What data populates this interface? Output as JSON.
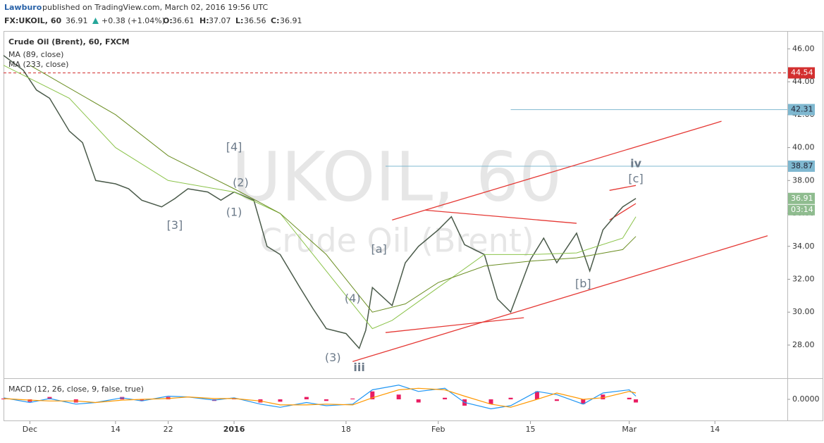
{
  "header": {
    "publisher": "Lawburo",
    "published": "published on TradingView.com, March 02, 2016 19:56 UTC",
    "symbol": "FX:UKOIL, 60",
    "last": "36.91",
    "change": "+0.38 (+1.04%)",
    "o_label": "O:",
    "open": "36.61",
    "h_label": "H:",
    "high": "37.07",
    "l_label": "L:",
    "low": "36.56",
    "c_label": "C:",
    "close": "36.91"
  },
  "chart_data": [
    {
      "type": "candles-line",
      "title": "Crude Oil (Brent), 60, FXCM",
      "watermark": "UKOIL, 60",
      "watermark_sub": "Crude Oil (Brent)",
      "countdown": "03:14",
      "xlim": [
        "2015-11-27",
        "2016-03-25"
      ],
      "xticks": [
        {
          "value": "2015-12-01",
          "label": "Dec"
        },
        {
          "value": "2015-12-14",
          "label": "14"
        },
        {
          "value": "2015-12-22",
          "label": "22"
        },
        {
          "value": "2016-01-01",
          "label": "2016"
        },
        {
          "value": "2016-01-18",
          "label": "18"
        },
        {
          "value": "2016-02-01",
          "label": "Feb"
        },
        {
          "value": "2016-02-15",
          "label": "15"
        },
        {
          "value": "2016-03-01",
          "label": "Mar"
        },
        {
          "value": "2016-03-14",
          "label": "14"
        }
      ],
      "ylim": [
        26.5,
        47
      ],
      "yticks": [
        {
          "value": 28,
          "label": "28.00"
        },
        {
          "value": 30,
          "label": "30.00"
        },
        {
          "value": 32,
          "label": "32.00"
        },
        {
          "value": 34,
          "label": "34.00"
        },
        {
          "value": 36,
          "label": "36.00"
        },
        {
          "value": 38,
          "label": "38.00"
        },
        {
          "value": 40,
          "label": "40.00"
        },
        {
          "value": 42,
          "label": "42.00"
        },
        {
          "value": 44,
          "label": "44.00"
        },
        {
          "value": 46,
          "label": "46.00"
        }
      ],
      "series": [
        {
          "name": "UKOIL",
          "color": "#4a5a4a",
          "x": [
            "2015-11-27",
            "2015-11-30",
            "2015-12-02",
            "2015-12-04",
            "2015-12-07",
            "2015-12-09",
            "2015-12-11",
            "2015-12-14",
            "2015-12-16",
            "2015-12-18",
            "2015-12-21",
            "2015-12-23",
            "2015-12-25",
            "2015-12-28",
            "2015-12-30",
            "2016-01-01",
            "2016-01-04",
            "2016-01-06",
            "2016-01-08",
            "2016-01-11",
            "2016-01-13",
            "2016-01-15",
            "2016-01-18",
            "2016-01-20",
            "2016-01-21",
            "2016-01-22",
            "2016-01-25",
            "2016-01-27",
            "2016-01-29",
            "2016-02-01",
            "2016-02-03",
            "2016-02-05",
            "2016-02-08",
            "2016-02-10",
            "2016-02-12",
            "2016-02-15",
            "2016-02-17",
            "2016-02-19",
            "2016-02-22",
            "2016-02-24",
            "2016-02-26",
            "2016-02-29",
            "2016-03-02"
          ],
          "values": [
            45.6,
            44.7,
            43.5,
            43.0,
            41.0,
            40.3,
            38.0,
            37.8,
            37.5,
            36.8,
            36.4,
            36.9,
            37.5,
            37.3,
            36.8,
            37.3,
            36.8,
            34.0,
            33.5,
            31.5,
            30.2,
            29.0,
            28.7,
            27.8,
            28.9,
            31.5,
            30.4,
            33.0,
            34.0,
            35.0,
            35.8,
            34.1,
            33.5,
            30.8,
            30.0,
            33.2,
            34.5,
            33.0,
            34.8,
            32.5,
            35.0,
            36.4,
            36.91
          ]
        },
        {
          "name": "MA (89, close)",
          "color": "#8bc34a",
          "x": [
            "2015-11-27",
            "2015-12-07",
            "2015-12-14",
            "2015-12-22",
            "2016-01-01",
            "2016-01-08",
            "2016-01-15",
            "2016-01-22",
            "2016-01-25",
            "2016-02-01",
            "2016-02-08",
            "2016-02-15",
            "2016-02-22",
            "2016-02-29",
            "2016-03-02"
          ],
          "values": [
            45.0,
            43.0,
            40.0,
            38.0,
            37.3,
            36.0,
            32.5,
            29.0,
            29.5,
            31.5,
            33.5,
            33.5,
            33.6,
            34.5,
            35.8
          ]
        },
        {
          "name": "MA (233, close)",
          "color": "#6b8e23",
          "x": [
            "2015-12-01",
            "2015-12-14",
            "2015-12-22",
            "2016-01-01",
            "2016-01-08",
            "2016-01-15",
            "2016-01-22",
            "2016-01-27",
            "2016-02-01",
            "2016-02-08",
            "2016-02-15",
            "2016-02-22",
            "2016-02-29",
            "2016-03-02"
          ],
          "values": [
            45.0,
            42.0,
            39.5,
            37.5,
            36.0,
            33.5,
            30.0,
            30.5,
            31.8,
            32.8,
            33.1,
            33.3,
            33.8,
            34.6
          ]
        }
      ],
      "levels": [
        {
          "value": 44.54,
          "from": "2015-11-27",
          "color": "#d32f2f",
          "dashed": true
        },
        {
          "value": 42.31,
          "from": "2016-02-12",
          "color": "#7fb8d0",
          "dashed": false
        },
        {
          "value": 38.87,
          "from": "2016-01-24",
          "color": "#7fb8d0",
          "dashed": false
        }
      ],
      "trendlines": [
        {
          "x": [
            "2016-01-19",
            "2016-03-22"
          ],
          "y": [
            27.0,
            34.64
          ]
        },
        {
          "x": [
            "2016-01-25",
            "2016-03-15"
          ],
          "y": [
            35.6,
            41.6
          ]
        },
        {
          "x": [
            "2016-01-30",
            "2016-02-22"
          ],
          "y": [
            36.2,
            35.4
          ]
        },
        {
          "x": [
            "2016-01-24",
            "2016-02-14"
          ],
          "y": [
            28.76,
            29.66
          ]
        },
        {
          "x": [
            "2016-02-27",
            "2016-03-02"
          ],
          "y": [
            37.4,
            37.7
          ]
        },
        {
          "x": [
            "2016-02-27",
            "2016-03-02"
          ],
          "y": [
            35.6,
            36.6
          ]
        }
      ],
      "trend_color": "#e53935",
      "annotations": [
        {
          "text": "[4]",
          "x": "2016-01-01",
          "y": 40.0
        },
        {
          "text": "(2)",
          "x": "2016-01-02",
          "y": 37.85
        },
        {
          "text": "(1)",
          "x": "2016-01-01",
          "y": 36.05
        },
        {
          "text": "[3]",
          "x": "2015-12-23",
          "y": 35.25
        },
        {
          "text": "(4)",
          "x": "2016-01-19",
          "y": 30.8
        },
        {
          "text": "(3)",
          "x": "2016-01-16",
          "y": 27.2
        },
        {
          "text": "iii",
          "x": "2016-01-20",
          "y": 26.6
        },
        {
          "text": "[a]",
          "x": "2016-01-23",
          "y": 33.8
        },
        {
          "text": "[b]",
          "x": "2016-02-23",
          "y": 31.7
        },
        {
          "text": "[c]",
          "x": "2016-03-02",
          "y": 38.07
        },
        {
          "text": "iv",
          "x": "2016-03-02",
          "y": 39.0
        }
      ]
    },
    {
      "type": "macd",
      "title": "MACD (12, 26, close, 9, false, true)",
      "ylim": [
        -1.2,
        1.2
      ],
      "yticks": [
        {
          "value": 0,
          "label": "0.0000"
        }
      ],
      "x": [
        "2015-11-27",
        "2015-12-01",
        "2015-12-04",
        "2015-12-08",
        "2015-12-11",
        "2015-12-15",
        "2015-12-18",
        "2015-12-22",
        "2015-12-25",
        "2015-12-29",
        "2016-01-01",
        "2016-01-05",
        "2016-01-08",
        "2016-01-12",
        "2016-01-15",
        "2016-01-19",
        "2016-01-22",
        "2016-01-26",
        "2016-01-29",
        "2016-02-02",
        "2016-02-05",
        "2016-02-09",
        "2016-02-12",
        "2016-02-16",
        "2016-02-19",
        "2016-02-23",
        "2016-02-26",
        "2016-03-01",
        "2016-03-02"
      ],
      "series": [
        {
          "name": "MACD",
          "color": "#2196f3",
          "values": [
            0.1,
            -0.2,
            0.05,
            -0.3,
            -0.2,
            0.1,
            -0.1,
            0.2,
            0.15,
            -0.05,
            0.1,
            -0.3,
            -0.5,
            -0.2,
            -0.4,
            -0.3,
            0.6,
            0.9,
            0.5,
            0.7,
            -0.2,
            -0.6,
            -0.4,
            0.5,
            0.3,
            -0.3,
            0.4,
            0.6,
            0.2
          ]
        },
        {
          "name": "Signal",
          "color": "#ff9800",
          "values": [
            0.05,
            -0.05,
            -0.1,
            -0.1,
            -0.2,
            -0.05,
            0,
            0.05,
            0.15,
            0.05,
            0.05,
            -0.1,
            -0.35,
            -0.35,
            -0.3,
            -0.35,
            0.1,
            0.6,
            0.7,
            0.6,
            0.2,
            -0.3,
            -0.5,
            0,
            0.4,
            0,
            0.1,
            0.5,
            0.4
          ]
        },
        {
          "name": "Histogram",
          "color": "#e91e63",
          "values": [
            0.05,
            -0.15,
            0.15,
            -0.2,
            0,
            0.15,
            -0.1,
            0.15,
            0,
            -0.1,
            0.05,
            -0.2,
            -0.15,
            0.15,
            -0.1,
            0.05,
            0.5,
            0.3,
            -0.2,
            0.1,
            -0.4,
            -0.3,
            0.1,
            0.5,
            -0.1,
            -0.3,
            0.3,
            0.1,
            -0.2
          ]
        }
      ]
    }
  ]
}
